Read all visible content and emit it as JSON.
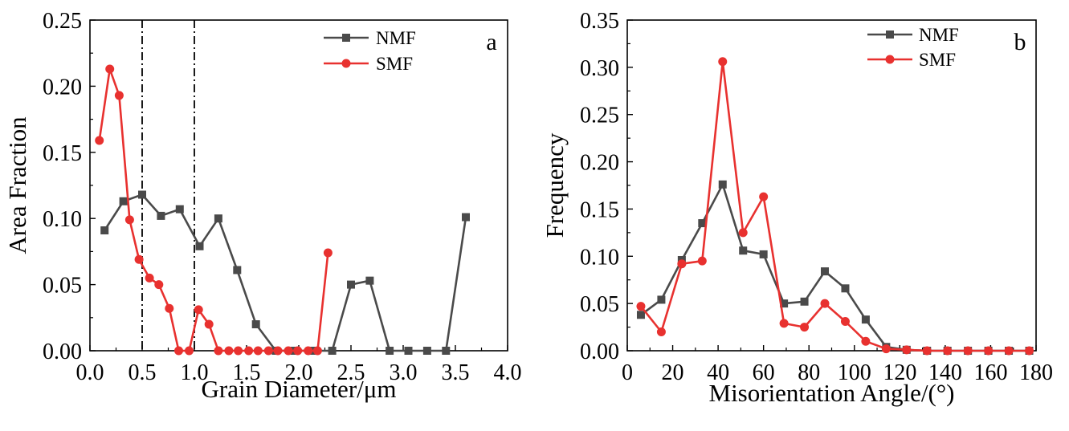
{
  "chart_data": [
    {
      "type": "line",
      "panel_label": "a",
      "xlabel": "Grain Diameter/μm",
      "ylabel": "Area Fraction",
      "xlim": [
        0.0,
        4.0
      ],
      "ylim": [
        0.0,
        0.25
      ],
      "xticks": [
        "0.0",
        "0.5",
        "1.0",
        "1.5",
        "2.0",
        "2.5",
        "3.0",
        "3.5",
        "4.0"
      ],
      "yticks": [
        "0.00",
        "0.05",
        "0.10",
        "0.15",
        "0.20",
        "0.25"
      ],
      "reference_lines_x": [
        0.5,
        1.0
      ],
      "legend_position": "top-right",
      "grid": false,
      "series": [
        {
          "name": "NMF",
          "color": "#4a4a4a",
          "marker": "square",
          "x": [
            0.14,
            0.32,
            0.5,
            0.68,
            0.86,
            1.05,
            1.23,
            1.41,
            1.59,
            1.78,
            1.96,
            2.14,
            2.32,
            2.5,
            2.68,
            2.87,
            3.05,
            3.23,
            3.41,
            3.6
          ],
          "y": [
            0.091,
            0.113,
            0.118,
            0.102,
            0.107,
            0.079,
            0.1,
            0.061,
            0.02,
            0.0,
            0.0,
            0.0,
            0.0,
            0.05,
            0.053,
            0.0,
            0.0,
            0.0,
            0.0,
            0.101
          ]
        },
        {
          "name": "SMF",
          "color": "#e8312f",
          "marker": "circle",
          "x": [
            0.09,
            0.19,
            0.28,
            0.38,
            0.47,
            0.57,
            0.66,
            0.76,
            0.85,
            0.95,
            1.04,
            1.14,
            1.23,
            1.33,
            1.42,
            1.52,
            1.61,
            1.71,
            1.8,
            1.9,
            1.99,
            2.09,
            2.18,
            2.28
          ],
          "y": [
            0.159,
            0.213,
            0.193,
            0.099,
            0.069,
            0.055,
            0.05,
            0.032,
            0.0,
            0.0,
            0.031,
            0.02,
            0.0,
            0.0,
            0.0,
            0.0,
            0.0,
            0.0,
            0.0,
            0.0,
            0.0,
            0.0,
            0.0,
            0.074
          ]
        }
      ]
    },
    {
      "type": "line",
      "panel_label": "b",
      "xlabel": "Misorientation Angle/(°)",
      "ylabel": "Frequency",
      "xlim": [
        0,
        180
      ],
      "ylim": [
        0.0,
        0.35
      ],
      "xticks": [
        "0",
        "20",
        "40",
        "60",
        "80",
        "100",
        "120",
        "140",
        "160",
        "180"
      ],
      "yticks": [
        "0.00",
        "0.05",
        "0.10",
        "0.15",
        "0.20",
        "0.25",
        "0.30",
        "0.35"
      ],
      "legend_position": "top-right",
      "grid": false,
      "series": [
        {
          "name": "NMF",
          "color": "#4a4a4a",
          "marker": "square",
          "x": [
            6,
            15,
            24,
            33,
            42,
            51,
            60,
            69,
            78,
            87,
            96,
            105,
            114,
            123,
            132,
            141,
            150,
            159,
            168,
            177
          ],
          "y": [
            0.038,
            0.054,
            0.096,
            0.135,
            0.176,
            0.106,
            0.102,
            0.05,
            0.052,
            0.084,
            0.066,
            0.033,
            0.004,
            0.001,
            0.0,
            0.0,
            0.0,
            0.0,
            0.0,
            0.0
          ]
        },
        {
          "name": "SMF",
          "color": "#e8312f",
          "marker": "circle",
          "x": [
            6,
            15,
            24,
            33,
            42,
            51,
            60,
            69,
            78,
            87,
            96,
            105,
            114,
            123,
            132,
            141,
            150,
            159,
            168,
            177
          ],
          "y": [
            0.047,
            0.02,
            0.092,
            0.095,
            0.306,
            0.125,
            0.163,
            0.029,
            0.025,
            0.05,
            0.031,
            0.01,
            0.002,
            0.001,
            0.0,
            0.0,
            0.0,
            0.0,
            0.0,
            0.0
          ]
        }
      ]
    }
  ]
}
